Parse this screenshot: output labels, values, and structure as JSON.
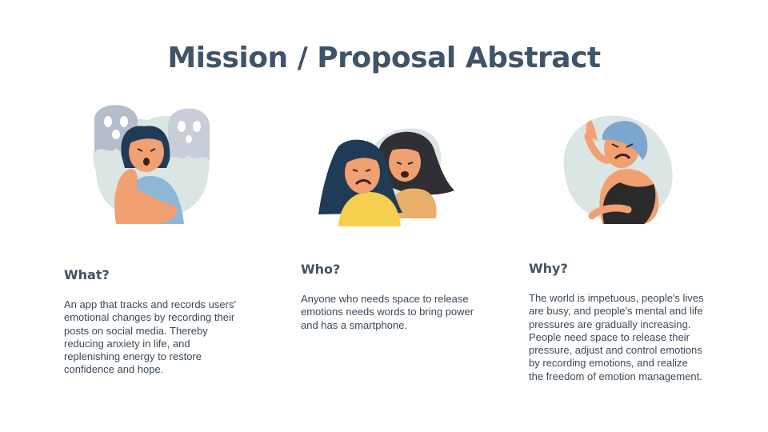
{
  "page_title": "Mission / Proposal Abstract",
  "sections": [
    {
      "heading": "What?",
      "body": "An app that tracks and records users' emotional changes by recording their posts on social media. Thereby reducing anxiety in life, and replenishing energy to restore confidence and hope."
    },
    {
      "heading": "Who?",
      "body": "Anyone who needs space to release emotions needs words to bring power and has a smartphone."
    },
    {
      "heading": "Why?",
      "body": "The world is impetuous, people's lives are busy, and people's mental and life pressures are gradually increasing. People need space to release their pressure, adjust and control emotions by recording emotions, and realize the freedom of emotion management."
    }
  ],
  "colors": {
    "title": "#3f5468",
    "body_text": "#3b4a58",
    "blob": "#dbe6e4",
    "skin": "#f1a071",
    "hair_dark": "#1f3b55",
    "shirt_blue": "#8db7d6",
    "shirt_yellow": "#f5cf4d",
    "ghost": "#b5bccb"
  }
}
